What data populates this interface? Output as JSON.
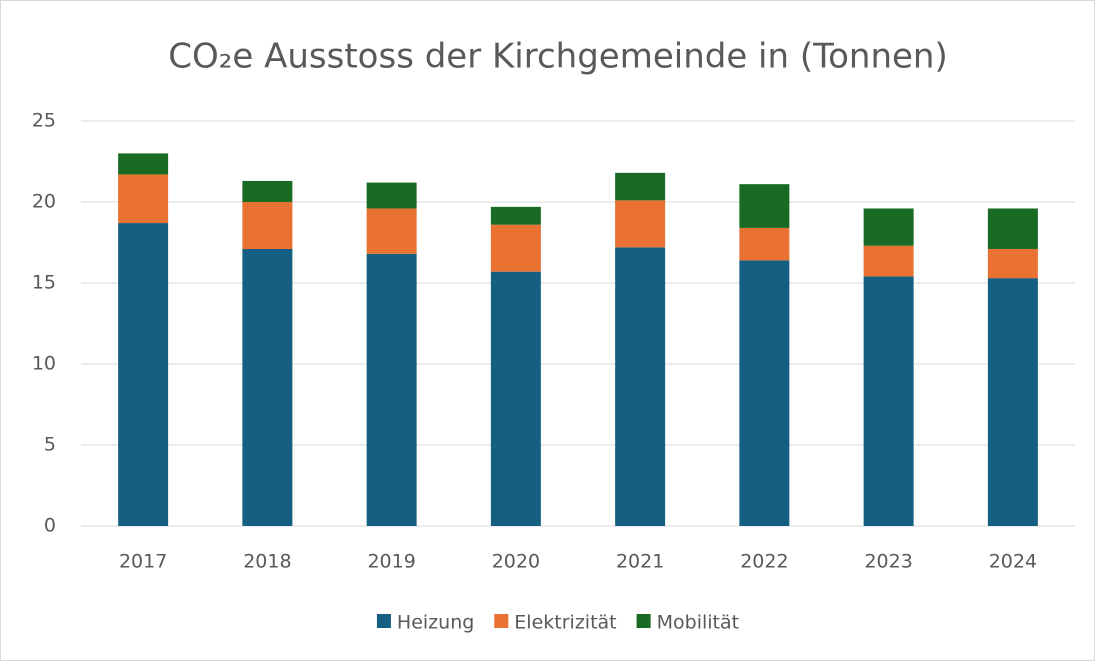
{
  "chart_data": {
    "type": "stacked_bar",
    "title": "CO₂e Ausstoss der Kirchgemeinde in (Tonnen)",
    "categories": [
      "2017",
      "2018",
      "2019",
      "2020",
      "2021",
      "2022",
      "2023",
      "2024"
    ],
    "series": [
      {
        "name": "Heizung",
        "color": "#156082",
        "values": [
          18.7,
          17.1,
          16.8,
          15.7,
          17.2,
          16.4,
          15.4,
          15.3
        ]
      },
      {
        "name": "Elektrizität",
        "color": "#e97132",
        "values": [
          3.0,
          2.9,
          2.8,
          2.9,
          2.9,
          2.0,
          1.9,
          1.8
        ]
      },
      {
        "name": "Mobilität",
        "color": "#196b24",
        "values": [
          1.3,
          1.3,
          1.6,
          1.1,
          1.7,
          2.7,
          2.3,
          2.5
        ]
      }
    ],
    "ylim": [
      0,
      25
    ],
    "yticks": [
      0,
      5,
      10,
      15,
      20,
      25
    ],
    "grid": true,
    "legend": "bottom"
  }
}
